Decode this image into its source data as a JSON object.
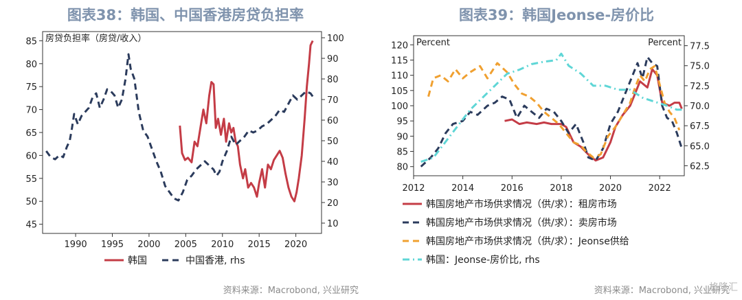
{
  "left": {
    "title": "图表38：韩国、中国香港房贷负担率",
    "source": "资料来源：Macrobond, 兴业研究",
    "chart_data": {
      "type": "line",
      "title": "图表38：韩国、中国香港房贷负担率",
      "y_left_label": "房贷负担率（房贷/收入）",
      "x_ticks": [
        "1990",
        "1995",
        "2000",
        "2005",
        "2010",
        "2015",
        "2020"
      ],
      "xlim": [
        1985.5,
        2023.5
      ],
      "ylim_left": [
        43,
        87
      ],
      "ylim_right": [
        5,
        103
      ],
      "y_left_ticks": [
        45,
        50,
        55,
        60,
        65,
        70,
        75,
        80,
        85
      ],
      "y_right_ticks": [
        10,
        20,
        30,
        40,
        50,
        60,
        70,
        80,
        90,
        100
      ],
      "legend_position": "bottom",
      "grid": false,
      "series": [
        {
          "name": "韩国",
          "axis": "left",
          "color": "#c43c46",
          "style": "solid",
          "x": [
            2004.2,
            2004.5,
            2004.9,
            2005.3,
            2005.8,
            2006.2,
            2006.6,
            2007.0,
            2007.4,
            2007.8,
            2008.2,
            2008.5,
            2008.8,
            2009.1,
            2009.4,
            2009.8,
            2010.2,
            2010.5,
            2010.9,
            2011.2,
            2011.5,
            2011.8,
            2012.1,
            2012.4,
            2012.8,
            2013.1,
            2013.5,
            2013.9,
            2014.3,
            2014.7,
            2015.0,
            2015.4,
            2015.8,
            2016.2,
            2016.6,
            2017.0,
            2017.4,
            2017.8,
            2018.2,
            2018.6,
            2019.0,
            2019.4,
            2019.8,
            2020.1,
            2020.4,
            2020.8,
            2021.2,
            2021.5,
            2021.8,
            2022.0,
            2022.3
          ],
          "y": [
            66.5,
            60.5,
            59,
            59.5,
            58.5,
            63,
            62,
            66,
            70,
            67,
            73,
            76,
            75.5,
            66,
            68,
            64.5,
            68,
            63,
            67,
            65,
            66,
            63,
            62,
            58,
            55,
            57,
            53,
            54,
            53,
            51,
            54,
            57,
            53,
            58,
            57,
            59,
            60,
            61,
            59.5,
            56,
            53,
            51,
            50,
            52,
            55,
            60,
            68,
            75,
            80,
            84,
            85
          ]
        },
        {
          "name": "中国香港, rhs",
          "axis": "right",
          "color": "#2b3b5c",
          "style": "dashed",
          "x": [
            1986.0,
            1986.6,
            1987.2,
            1987.8,
            1988.3,
            1988.8,
            1989.2,
            1989.5,
            1989.8,
            1990.3,
            1990.8,
            1991.3,
            1991.8,
            1992.3,
            1992.8,
            1993.3,
            1993.8,
            1994.3,
            1994.8,
            1995.3,
            1995.8,
            1996.3,
            1996.8,
            1997.2,
            1997.5,
            1998.0,
            1998.6,
            1999.2,
            1999.8,
            2000.4,
            2001.0,
            2001.6,
            2002.2,
            2002.8,
            2003.4,
            2004.0,
            2004.6,
            2005.2,
            2005.8,
            2006.4,
            2007.0,
            2007.6,
            2008.2,
            2008.8,
            2009.2,
            2009.6,
            2010.0,
            2010.6,
            2011.2,
            2011.8,
            2012.4,
            2013.0,
            2013.6,
            2014.2,
            2014.8,
            2015.4,
            2016.0,
            2016.6,
            2017.2,
            2017.8,
            2018.4,
            2019.0,
            2019.6,
            2020.2,
            2020.8,
            2021.4,
            2022.0,
            2022.4
          ],
          "y": [
            45,
            42,
            41,
            43,
            42,
            47,
            50,
            56,
            63,
            58,
            62,
            64,
            66,
            71,
            73,
            66,
            70,
            75,
            74,
            72,
            66,
            70,
            80,
            92,
            85,
            80,
            64,
            55,
            52,
            46,
            40,
            35,
            28,
            25,
            22,
            21,
            25,
            31,
            33,
            36,
            38,
            40,
            38,
            36,
            33,
            35,
            40,
            45,
            52,
            48,
            50,
            52,
            55,
            54,
            55,
            57,
            58,
            60,
            62,
            65,
            64,
            68,
            72,
            70,
            72,
            74,
            73,
            71
          ]
        }
      ]
    }
  },
  "right": {
    "title": "图表39：韩国Jeonse-房价比",
    "source": "资料来源：Macrobond, 兴业研究",
    "watermark": "格隆汇",
    "chart_data": {
      "type": "line",
      "title": "图表39：韩国Jeonse-房价比",
      "y_left_label": "Percent",
      "y_right_label": "Percent",
      "x_ticks": [
        "2012",
        "2014",
        "2016",
        "2018",
        "2020",
        "2022"
      ],
      "xlim": [
        2012.0,
        2023.0
      ],
      "ylim_left": [
        77,
        123
      ],
      "ylim_right": [
        61.25,
        78.75
      ],
      "y_left_ticks": [
        80,
        85,
        90,
        95,
        100,
        105,
        110,
        115,
        120
      ],
      "y_right_ticks": [
        62.5,
        65.0,
        67.5,
        70.0,
        72.5,
        75.0,
        77.5
      ],
      "legend_position": "bottom",
      "grid": false,
      "series": [
        {
          "name": "韩国房地产市场供求情况（供/求）：租房市场",
          "axis": "left",
          "color": "#c43c46",
          "style": "solid",
          "x": [
            2015.7,
            2016.0,
            2016.3,
            2016.6,
            2017.0,
            2017.3,
            2017.6,
            2018.0,
            2018.2,
            2018.5,
            2018.8,
            2019.1,
            2019.4,
            2019.7,
            2020.0,
            2020.2,
            2020.5,
            2020.8,
            2021.0,
            2021.2,
            2021.5,
            2021.7,
            2021.9,
            2022.1,
            2022.4,
            2022.6,
            2022.8,
            2022.9
          ],
          "y": [
            95,
            95.5,
            94,
            94.5,
            94,
            94.5,
            94,
            94,
            93,
            88,
            86.5,
            84,
            82,
            83,
            88,
            93,
            97,
            100,
            104,
            108,
            106,
            112,
            110,
            101,
            100,
            101,
            101,
            99
          ]
        },
        {
          "name": "韩国房地产市场供求情况（供/求）：卖房市场",
          "axis": "left",
          "color": "#2b3b5c",
          "style": "dashed",
          "x": [
            2012.3,
            2012.7,
            2013.0,
            2013.3,
            2013.6,
            2014.0,
            2014.3,
            2014.6,
            2015.0,
            2015.3,
            2015.6,
            2015.9,
            2016.2,
            2016.5,
            2016.8,
            2017.1,
            2017.4,
            2017.7,
            2018.0,
            2018.3,
            2018.6,
            2018.9,
            2019.1,
            2019.4,
            2019.7,
            2020.0,
            2020.3,
            2020.6,
            2020.9,
            2021.1,
            2021.3,
            2021.5,
            2021.7,
            2021.9,
            2022.1,
            2022.3,
            2022.5,
            2022.7,
            2022.9
          ],
          "y": [
            80,
            83,
            86,
            91,
            94,
            95,
            98,
            97,
            100,
            101,
            103,
            102,
            96,
            100,
            98,
            96,
            99,
            98,
            95,
            91,
            94,
            88,
            83,
            82,
            86,
            94,
            98,
            104,
            110,
            114,
            109,
            116,
            114,
            113,
            100,
            96,
            95,
            91,
            86
          ]
        },
        {
          "name": "韩国房地产市场供求情况（供/求）：Jeonse供给",
          "axis": "left",
          "color": "#f0a030",
          "style": "dashed",
          "x": [
            2012.6,
            2012.8,
            2013.1,
            2013.4,
            2013.7,
            2014.0,
            2014.3,
            2014.7,
            2015.0,
            2015.4,
            2015.8,
            2016.1,
            2016.4,
            2016.7,
            2017.0,
            2017.3,
            2017.6,
            2017.9,
            2018.2,
            2018.5,
            2018.8,
            2019.0,
            2019.3,
            2019.6,
            2019.9,
            2020.2,
            2020.5,
            2020.8,
            2021.0,
            2021.2,
            2021.4,
            2021.6,
            2021.8,
            2022.0,
            2022.2,
            2022.4,
            2022.6,
            2022.8
          ],
          "y": [
            103,
            109,
            110,
            108,
            112,
            109,
            111,
            113,
            109,
            114,
            111,
            107,
            104,
            103,
            101,
            98,
            96,
            94,
            91,
            88,
            87,
            85,
            83,
            84,
            90,
            93,
            97,
            101,
            106,
            110,
            108,
            112,
            113,
            107,
            101,
            98,
            96,
            92
          ]
        },
        {
          "name": "韩国：Jeonse-房价比, rhs",
          "axis": "right",
          "color": "#5fd6d6",
          "style": "dashdot",
          "x": [
            2012.3,
            2012.8,
            2013.3,
            2013.8,
            2014.3,
            2014.8,
            2015.3,
            2015.8,
            2016.3,
            2016.8,
            2017.3,
            2017.8,
            2018.0,
            2018.3,
            2018.8,
            2019.3,
            2019.8,
            2020.3,
            2020.8,
            2021.3,
            2021.8,
            2022.3,
            2022.7,
            2022.9
          ],
          "y": [
            63,
            63.5,
            65.5,
            67.5,
            69.5,
            71,
            72.5,
            74,
            74.5,
            75.2,
            75.5,
            75.7,
            76.5,
            75,
            74,
            72.5,
            72.5,
            72,
            72,
            71,
            70.5,
            70,
            69.5,
            69.5
          ]
        }
      ]
    }
  }
}
